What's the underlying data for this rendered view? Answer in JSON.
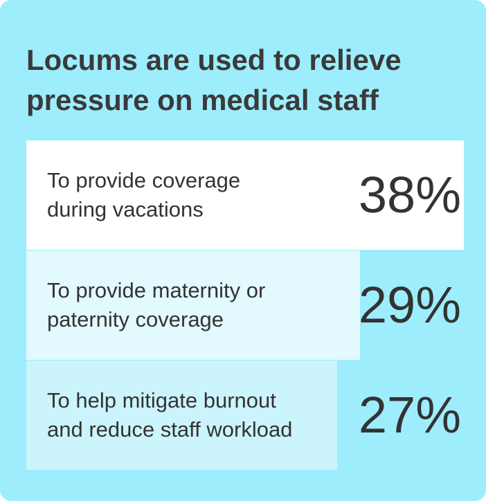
{
  "chart_data": {
    "type": "bar",
    "orientation": "horizontal",
    "title": "Locums are used to relieve pressure on medical staff",
    "categories": [
      "To provide coverage during vacations",
      "To provide maternity or paternity coverage",
      "To help mitigate burnout and reduce staff workload"
    ],
    "values": [
      38,
      29,
      27
    ],
    "value_labels": [
      "38%",
      "29%",
      "27%"
    ],
    "colors": [
      "#ffffff",
      "#e2f9fe",
      "#cbf4fd"
    ],
    "background": "#9eedfc",
    "xlim": [
      0,
      38
    ]
  }
}
